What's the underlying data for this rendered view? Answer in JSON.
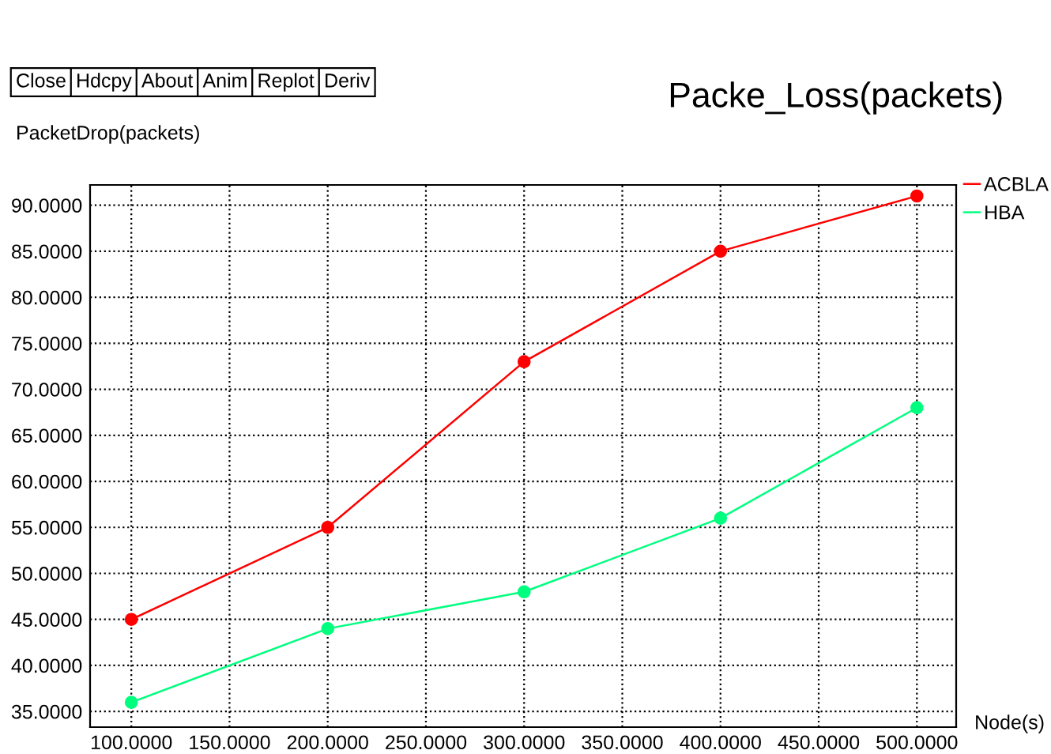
{
  "chart_data": {
    "type": "line",
    "title": "Packe_Loss(packets)",
    "ylabel": "PacketDrop(packets)",
    "xlabel": "Node(s)",
    "annotations": [
      "Close",
      "Hdcpy",
      "About",
      "Anim",
      "Replot",
      "Deriv"
    ],
    "x": [
      100,
      200,
      300,
      400,
      500
    ],
    "series": [
      {
        "name": "ACBLA",
        "color": "#ff0000",
        "values": [
          45,
          55,
          73,
          85,
          91
        ]
      },
      {
        "name": "HBA",
        "color": "#00ff7f",
        "values": [
          36,
          44,
          48,
          56,
          68
        ]
      }
    ],
    "xlim": [
      79,
      520
    ],
    "ylim": [
      33.3,
      92.2
    ],
    "xticks": [
      {
        "value": 100,
        "label": "100.0000"
      },
      {
        "value": 150,
        "label": "150.0000"
      },
      {
        "value": 200,
        "label": "200.0000"
      },
      {
        "value": 250,
        "label": "250.0000"
      },
      {
        "value": 300,
        "label": "300.0000"
      },
      {
        "value": 350,
        "label": "350.0000"
      },
      {
        "value": 400,
        "label": "400.0000"
      },
      {
        "value": 450,
        "label": "450.0000"
      },
      {
        "value": 500,
        "label": "500.0000"
      }
    ],
    "yticks": [
      {
        "value": 35,
        "label": "35.0000"
      },
      {
        "value": 40,
        "label": "40.0000"
      },
      {
        "value": 45,
        "label": "45.0000"
      },
      {
        "value": 50,
        "label": "50.0000"
      },
      {
        "value": 55,
        "label": "55.0000"
      },
      {
        "value": 60,
        "label": "60.0000"
      },
      {
        "value": 65,
        "label": "65.0000"
      },
      {
        "value": 70,
        "label": "70.0000"
      },
      {
        "value": 75,
        "label": "75.0000"
      },
      {
        "value": 80,
        "label": "80.0000"
      },
      {
        "value": 85,
        "label": "85.0000"
      },
      {
        "value": 90,
        "label": "90.0000"
      }
    ],
    "grid": true,
    "legend": "top right",
    "marker": "circle",
    "line_style": "solid"
  }
}
